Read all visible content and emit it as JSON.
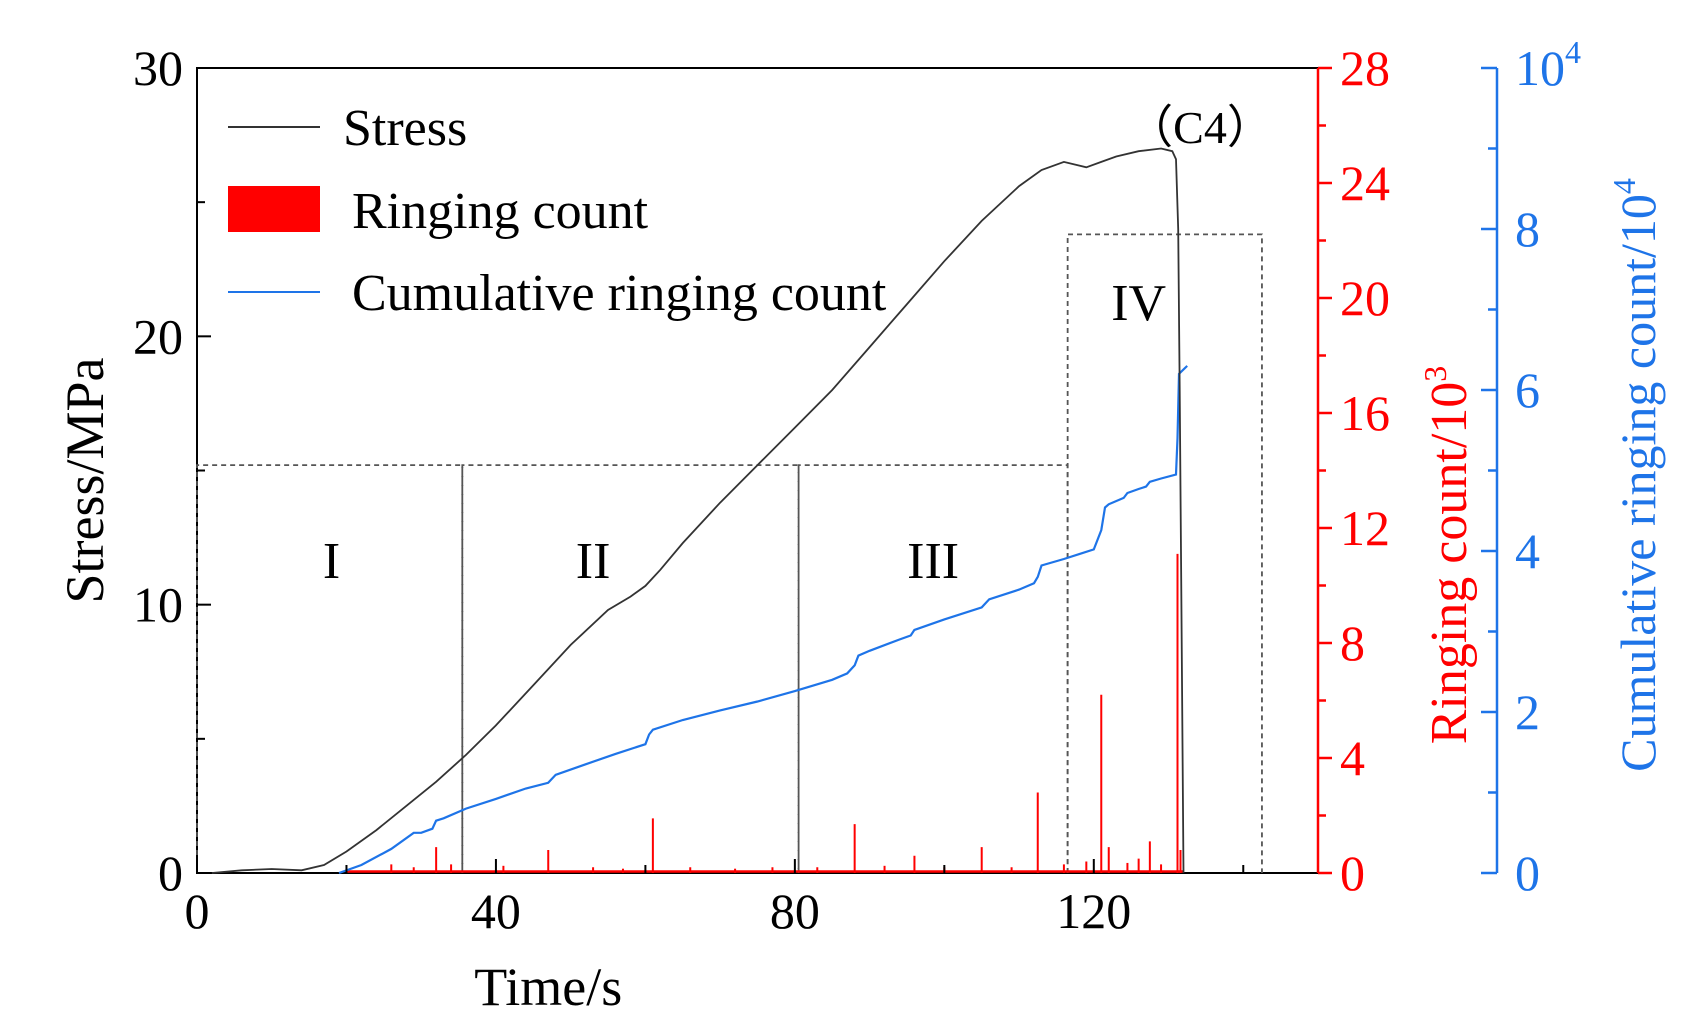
{
  "chart_data": {
    "type": "line",
    "panel_label": "（C4）",
    "xlabel": "Time/s",
    "xlim": [
      0,
      150
    ],
    "x_ticks": [
      0,
      40,
      80,
      120
    ],
    "x_tick_labels": [
      "0",
      "40",
      "80",
      "120"
    ],
    "axes": {
      "stress": {
        "label": "Stress/MPa",
        "lim": [
          0,
          30
        ],
        "ticks": [
          0,
          10,
          20,
          30
        ],
        "tick_labels": [
          "0",
          "10",
          "20",
          "30"
        ],
        "color": "#000000"
      },
      "ringing": {
        "label_main": "Ringing count/10",
        "label_exp": "3",
        "lim": [
          0,
          28
        ],
        "ticks": [
          0,
          4,
          8,
          12,
          16,
          20,
          24,
          28
        ],
        "tick_labels": [
          "0",
          "4",
          "8",
          "12",
          "16",
          "20",
          "24",
          "28"
        ],
        "color": "#ff0000"
      },
      "cumulative": {
        "label_main": "Cumulative ringing count/10",
        "label_exp": "4",
        "lim": [
          0,
          10
        ],
        "ticks": [
          0,
          2,
          4,
          6,
          8,
          10
        ],
        "tick_labels": [
          "0",
          "2",
          "4",
          "6",
          "8",
          "10"
        ],
        "top_label_exp": "4",
        "color": "#1e74e8"
      }
    },
    "legend": {
      "position": "top-left",
      "entries": [
        {
          "label": "Stress",
          "kind": "line",
          "color": "#333333"
        },
        {
          "label": "Ringing count",
          "kind": "bar",
          "color": "#ff0000"
        },
        {
          "label": "Cumulative ringing count",
          "kind": "line",
          "color": "#1e74e8"
        }
      ]
    },
    "stages": [
      {
        "label": "I",
        "x_range": [
          0,
          35.5
        ],
        "y_top": 15.2,
        "label_at": [
          18,
          11
        ]
      },
      {
        "label": "II",
        "x_range": [
          35.5,
          80.5
        ],
        "y_top": 15.2,
        "label_at": [
          53,
          11
        ]
      },
      {
        "label": "III",
        "x_range": [
          80.5,
          116.5
        ],
        "y_top": 15.2,
        "label_at": [
          98.5,
          11
        ]
      },
      {
        "label": "IV",
        "x_range": [
          116.5,
          142.5
        ],
        "y_top": 23.8,
        "label_at": [
          126,
          20.6
        ]
      }
    ],
    "series": [
      {
        "name": "Stress",
        "axis": "stress",
        "color": "#333333",
        "x": [
          2,
          6,
          10,
          14,
          17,
          20,
          24,
          28,
          32,
          36,
          40,
          45,
          50,
          55,
          58,
          60,
          62,
          65,
          70,
          75,
          80,
          85,
          90,
          95,
          100,
          105,
          110,
          113,
          116,
          119,
          121,
          123,
          126,
          129,
          130.5,
          131,
          131.3,
          131.5,
          131.7,
          132
        ],
        "y": [
          0,
          0.1,
          0.15,
          0.1,
          0.3,
          0.8,
          1.6,
          2.5,
          3.4,
          4.4,
          5.5,
          7.0,
          8.5,
          9.8,
          10.3,
          10.7,
          11.3,
          12.3,
          13.8,
          15.2,
          16.6,
          18.0,
          19.6,
          21.2,
          22.8,
          24.3,
          25.6,
          26.2,
          26.5,
          26.3,
          26.5,
          26.7,
          26.9,
          27.0,
          26.9,
          26.6,
          24.0,
          18.0,
          11.0,
          0
        ]
      },
      {
        "name": "Cumulative ringing count",
        "axis": "cumulative",
        "color": "#1e74e8",
        "x": [
          19,
          22,
          26,
          29,
          30,
          31.5,
          32,
          33,
          36,
          40,
          44,
          47,
          48,
          52,
          56,
          60,
          60.5,
          61,
          65,
          70,
          75,
          80,
          85,
          87,
          88,
          88.5,
          90,
          94,
          95.5,
          96,
          100,
          105,
          106,
          110,
          112,
          112.5,
          113,
          116,
          118,
          120,
          121,
          121.5,
          122,
          124,
          124.5,
          126,
          127,
          127.5,
          129,
          131,
          131.2,
          131.4,
          132.5
        ],
        "y": [
          0,
          0.1,
          0.3,
          0.5,
          0.5,
          0.55,
          0.65,
          0.68,
          0.8,
          0.92,
          1.05,
          1.12,
          1.22,
          1.35,
          1.48,
          1.6,
          1.72,
          1.78,
          1.9,
          2.02,
          2.13,
          2.26,
          2.4,
          2.48,
          2.58,
          2.7,
          2.76,
          2.9,
          2.95,
          3.02,
          3.15,
          3.3,
          3.4,
          3.52,
          3.6,
          3.68,
          3.82,
          3.9,
          3.96,
          4.02,
          4.26,
          4.54,
          4.58,
          4.66,
          4.72,
          4.77,
          4.8,
          4.86,
          4.9,
          4.95,
          5.4,
          6.2,
          6.3
        ]
      },
      {
        "name": "Ringing count",
        "axis": "ringing",
        "type": "bar",
        "color": "#ff0000",
        "spikes": [
          {
            "x": 26,
            "v": 0.3
          },
          {
            "x": 29,
            "v": 0.2
          },
          {
            "x": 32,
            "v": 0.9
          },
          {
            "x": 34,
            "v": 0.3
          },
          {
            "x": 41,
            "v": 0.25
          },
          {
            "x": 47,
            "v": 0.8
          },
          {
            "x": 53,
            "v": 0.2
          },
          {
            "x": 57,
            "v": 0.15
          },
          {
            "x": 61,
            "v": 1.9
          },
          {
            "x": 66,
            "v": 0.2
          },
          {
            "x": 72,
            "v": 0.15
          },
          {
            "x": 77,
            "v": 0.2
          },
          {
            "x": 83,
            "v": 0.2
          },
          {
            "x": 88,
            "v": 1.7
          },
          {
            "x": 92,
            "v": 0.25
          },
          {
            "x": 96,
            "v": 0.6
          },
          {
            "x": 100,
            "v": 0.2
          },
          {
            "x": 105,
            "v": 0.9
          },
          {
            "x": 109,
            "v": 0.2
          },
          {
            "x": 112.5,
            "v": 2.8
          },
          {
            "x": 116,
            "v": 0.3
          },
          {
            "x": 119,
            "v": 0.4
          },
          {
            "x": 121,
            "v": 6.2
          },
          {
            "x": 122,
            "v": 0.9
          },
          {
            "x": 124.5,
            "v": 0.35
          },
          {
            "x": 126,
            "v": 0.5
          },
          {
            "x": 127.5,
            "v": 1.1
          },
          {
            "x": 129,
            "v": 0.3
          },
          {
            "x": 131.2,
            "v": 11.1
          },
          {
            "x": 131.6,
            "v": 0.8
          }
        ]
      }
    ]
  }
}
